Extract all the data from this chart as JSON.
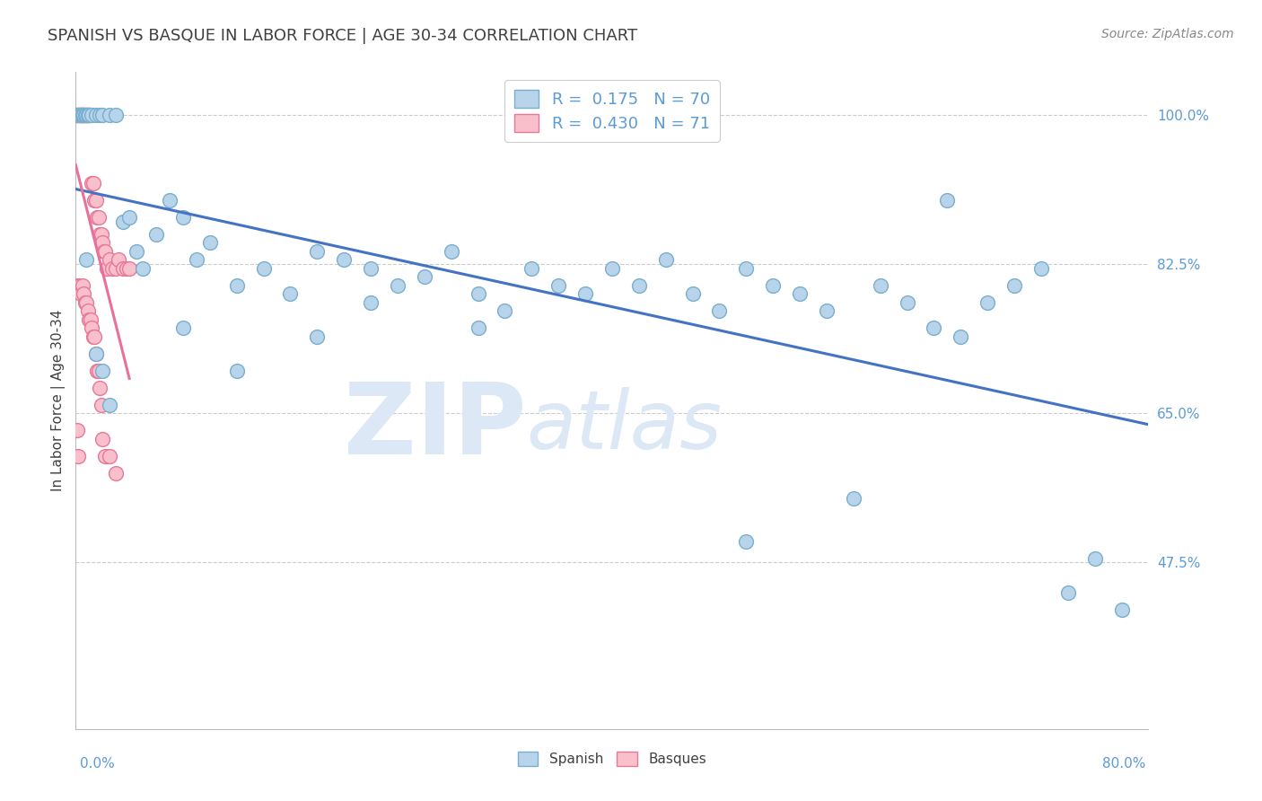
{
  "title": "SPANISH VS BASQUE IN LABOR FORCE | AGE 30-34 CORRELATION CHART",
  "source": "Source: ZipAtlas.com",
  "ylabel": "In Labor Force | Age 30-34",
  "ytick_labels": [
    "47.5%",
    "65.0%",
    "82.5%",
    "100.0%"
  ],
  "ytick_values": [
    0.475,
    0.65,
    0.825,
    1.0
  ],
  "xmin": 0.0,
  "xmax": 0.8,
  "ymin": 0.28,
  "ymax": 1.05,
  "R_spanish": 0.175,
  "N_spanish": 70,
  "R_basque": 0.43,
  "N_basque": 71,
  "color_spanish": "#b8d4ea",
  "color_basque": "#f9c0cc",
  "edge_color_spanish": "#7aaecf",
  "edge_color_basque": "#e87898",
  "line_color_spanish": "#4472c4",
  "line_color_basque": "#e8709a",
  "title_color": "#404040",
  "axis_label_color": "#5b9bd5",
  "watermark_color": "#dce8f5",
  "spanish_x": [
    0.002,
    0.003,
    0.004,
    0.005,
    0.005,
    0.006,
    0.007,
    0.008,
    0.009,
    0.01,
    0.012,
    0.015,
    0.018,
    0.02,
    0.025,
    0.03,
    0.035,
    0.04,
    0.045,
    0.05,
    0.06,
    0.07,
    0.08,
    0.09,
    0.1,
    0.12,
    0.14,
    0.16,
    0.18,
    0.2,
    0.22,
    0.24,
    0.26,
    0.28,
    0.3,
    0.32,
    0.34,
    0.36,
    0.38,
    0.4,
    0.42,
    0.44,
    0.46,
    0.48,
    0.5,
    0.52,
    0.54,
    0.56,
    0.58,
    0.6,
    0.62,
    0.64,
    0.66,
    0.68,
    0.7,
    0.72,
    0.74,
    0.76,
    0.78,
    0.008,
    0.015,
    0.02,
    0.025,
    0.08,
    0.12,
    0.18,
    0.22,
    0.3,
    0.5,
    0.65
  ],
  "spanish_y": [
    1.0,
    1.0,
    1.0,
    1.0,
    1.0,
    1.0,
    1.0,
    1.0,
    1.0,
    1.0,
    1.0,
    1.0,
    1.0,
    1.0,
    1.0,
    1.0,
    0.875,
    0.88,
    0.84,
    0.82,
    0.86,
    0.9,
    0.88,
    0.83,
    0.85,
    0.8,
    0.82,
    0.79,
    0.84,
    0.83,
    0.82,
    0.8,
    0.81,
    0.84,
    0.79,
    0.77,
    0.82,
    0.8,
    0.79,
    0.82,
    0.8,
    0.83,
    0.79,
    0.77,
    0.82,
    0.8,
    0.79,
    0.77,
    0.55,
    0.8,
    0.78,
    0.75,
    0.74,
    0.78,
    0.8,
    0.82,
    0.44,
    0.48,
    0.42,
    0.83,
    0.72,
    0.7,
    0.66,
    0.75,
    0.7,
    0.74,
    0.78,
    0.75,
    0.5,
    0.9
  ],
  "basque_x": [
    0.0,
    0.0,
    0.0,
    0.001,
    0.001,
    0.002,
    0.002,
    0.003,
    0.003,
    0.003,
    0.004,
    0.004,
    0.004,
    0.005,
    0.005,
    0.005,
    0.006,
    0.006,
    0.007,
    0.007,
    0.008,
    0.008,
    0.009,
    0.009,
    0.01,
    0.01,
    0.01,
    0.011,
    0.012,
    0.013,
    0.014,
    0.015,
    0.016,
    0.017,
    0.018,
    0.019,
    0.02,
    0.021,
    0.022,
    0.023,
    0.025,
    0.027,
    0.03,
    0.032,
    0.035,
    0.038,
    0.04,
    0.002,
    0.003,
    0.004,
    0.005,
    0.006,
    0.007,
    0.008,
    0.009,
    0.01,
    0.011,
    0.012,
    0.013,
    0.014,
    0.015,
    0.016,
    0.017,
    0.018,
    0.019,
    0.02,
    0.022,
    0.025,
    0.03,
    0.001,
    0.002
  ],
  "basque_y": [
    1.0,
    1.0,
    1.0,
    1.0,
    1.0,
    1.0,
    1.0,
    1.0,
    1.0,
    1.0,
    1.0,
    1.0,
    1.0,
    1.0,
    1.0,
    1.0,
    1.0,
    1.0,
    1.0,
    1.0,
    1.0,
    1.0,
    1.0,
    1.0,
    1.0,
    1.0,
    1.0,
    1.0,
    0.92,
    0.92,
    0.9,
    0.9,
    0.88,
    0.88,
    0.86,
    0.86,
    0.85,
    0.84,
    0.84,
    0.82,
    0.83,
    0.82,
    0.82,
    0.83,
    0.82,
    0.82,
    0.82,
    0.8,
    0.8,
    0.79,
    0.8,
    0.79,
    0.78,
    0.78,
    0.77,
    0.76,
    0.76,
    0.75,
    0.74,
    0.74,
    0.72,
    0.7,
    0.7,
    0.68,
    0.66,
    0.62,
    0.6,
    0.6,
    0.58,
    0.63,
    0.6
  ]
}
